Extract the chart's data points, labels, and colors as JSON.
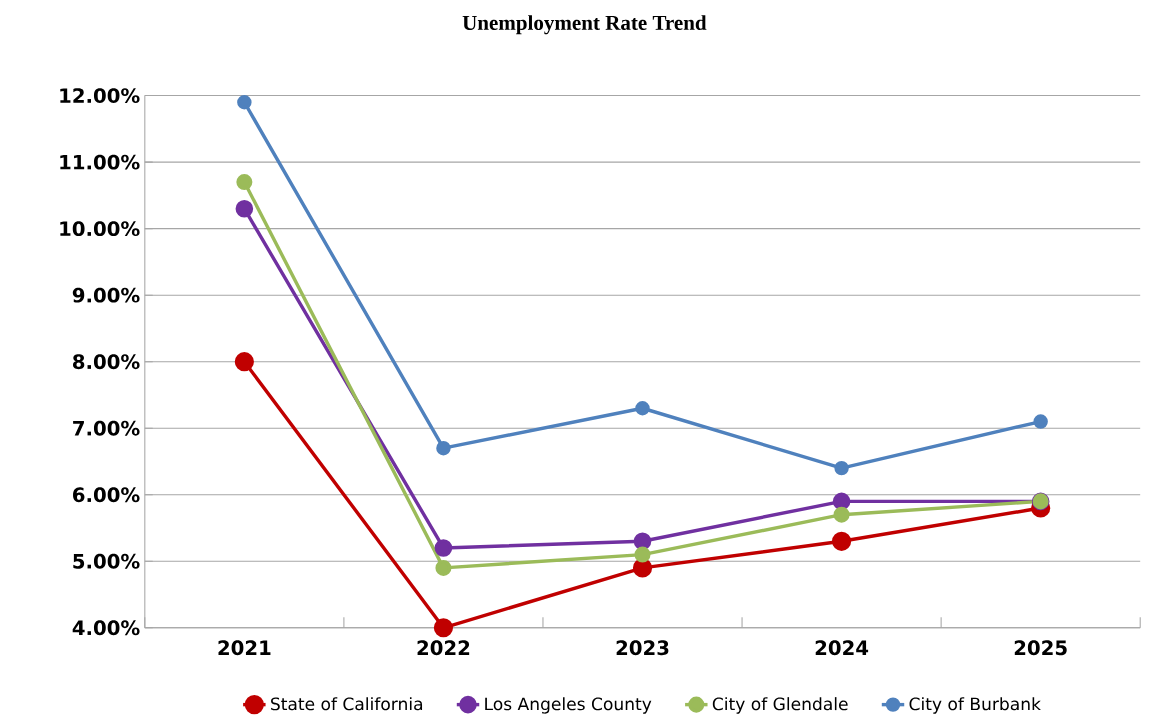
{
  "chart_data": {
    "type": "line",
    "title": "Unemployment Rate Trend",
    "categories": [
      "2021",
      "2022",
      "2023",
      "2024",
      "2025"
    ],
    "series": [
      {
        "name": "State of California",
        "color": "#c00000",
        "values": [
          8.0,
          4.0,
          4.9,
          5.3,
          5.8
        ]
      },
      {
        "name": "Los Angeles County",
        "color": "#7030a0",
        "values": [
          10.3,
          5.2,
          5.3,
          5.9,
          5.9
        ]
      },
      {
        "name": "City of Glendale",
        "color": "#9bbb59",
        "values": [
          10.7,
          4.9,
          5.1,
          5.7,
          5.9
        ]
      },
      {
        "name": "City of Burbank",
        "color": "#4f81bd",
        "values": [
          11.9,
          6.7,
          7.3,
          6.4,
          7.1
        ]
      }
    ],
    "ylim": [
      4,
      12
    ],
    "yticks": [
      {
        "value": 4,
        "label": "4.00%"
      },
      {
        "value": 5,
        "label": "5.00%"
      },
      {
        "value": 6,
        "label": "6.00%"
      },
      {
        "value": 7,
        "label": "7.00%"
      },
      {
        "value": 8,
        "label": "8.00%"
      },
      {
        "value": 9,
        "label": "9.00%"
      },
      {
        "value": 10,
        "label": "10.00%"
      },
      {
        "value": 11,
        "label": "11.00%"
      },
      {
        "value": 12,
        "label": "12.00%"
      }
    ],
    "grid": "y",
    "legend": "bottom",
    "marker": "circle",
    "line_style": "solid"
  }
}
